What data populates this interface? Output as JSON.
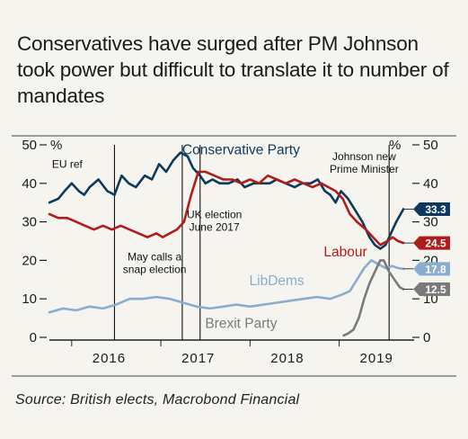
{
  "chart_data": {
    "type": "line",
    "title": "Conservatives have surged after PM Johnson took power but difficult to translate it to number of mandates",
    "source": "Source: British elects, Macrobond Financial",
    "ylim": [
      0,
      50
    ],
    "yticks": [
      0,
      10,
      20,
      30,
      40,
      50
    ],
    "y_unit": "%",
    "xlim": [
      2015.75,
      2019.8
    ],
    "xtick_labels": [
      {
        "label": "2016",
        "x": 2016.0
      },
      {
        "label": "2017",
        "x": 2017.0
      },
      {
        "label": "2018",
        "x": 2018.0
      },
      {
        "label": "2019",
        "x": 2019.0
      }
    ],
    "year_boundaries": [
      2016,
      2017,
      2018,
      2019
    ],
    "grid": false,
    "events": [
      {
        "x": 2016.48,
        "label": "EU ref",
        "label_x": 2015.95,
        "label_y": 44
      },
      {
        "x": 2017.24,
        "label": "May calls a\nsnap election",
        "label_x": 2016.93,
        "label_y": 20
      },
      {
        "x": 2017.44,
        "label": "UK election\nJune 2017",
        "label_x": 2017.6,
        "label_y": 31
      },
      {
        "x": 2019.56,
        "label": "Johnson new\nPrime Minister",
        "label_x": 2019.28,
        "label_y": 46
      }
    ],
    "series": [
      {
        "name": "Conservative Party",
        "color": "#0d3a5c",
        "end_label": "33.3",
        "label_x": 2017.9,
        "label_y": 47.5,
        "x": [
          2015.75,
          2015.85,
          2015.92,
          2016.0,
          2016.08,
          2016.14,
          2016.2,
          2016.3,
          2016.4,
          2016.48,
          2016.56,
          2016.64,
          2016.72,
          2016.82,
          2016.9,
          2016.98,
          2017.06,
          2017.14,
          2017.22,
          2017.3,
          2017.36,
          2017.44,
          2017.5,
          2017.58,
          2017.66,
          2017.76,
          2017.86,
          2017.94,
          2018.04,
          2018.14,
          2018.22,
          2018.3,
          2018.4,
          2018.5,
          2018.58,
          2018.68,
          2018.76,
          2018.84,
          2018.9,
          2018.96,
          2019.02,
          2019.1,
          2019.18,
          2019.26,
          2019.34,
          2019.4,
          2019.46,
          2019.52,
          2019.58,
          2019.64,
          2019.72
        ],
        "values": [
          35,
          36,
          38,
          40,
          38,
          37,
          39,
          41,
          38,
          37,
          42,
          40,
          39,
          42,
          41,
          45,
          43,
          46,
          48,
          47,
          44,
          42,
          40,
          41,
          40,
          40,
          41,
          39,
          40,
          40,
          40,
          41,
          40,
          39,
          40,
          40,
          41,
          38,
          37,
          35,
          38,
          36,
          33,
          30,
          26,
          24,
          23,
          24,
          27,
          30,
          33.3
        ]
      },
      {
        "name": "Labour",
        "color": "#b01c1c",
        "end_label": "24.5",
        "label_x": 2019.07,
        "label_y": 21,
        "x": [
          2015.75,
          2015.85,
          2015.95,
          2016.05,
          2016.15,
          2016.25,
          2016.35,
          2016.45,
          2016.55,
          2016.65,
          2016.75,
          2016.85,
          2016.95,
          2017.02,
          2017.1,
          2017.18,
          2017.26,
          2017.34,
          2017.42,
          2017.5,
          2017.6,
          2017.7,
          2017.8,
          2017.9,
          2018.0,
          2018.1,
          2018.2,
          2018.3,
          2018.4,
          2018.5,
          2018.6,
          2018.7,
          2018.8,
          2018.88,
          2018.96,
          2019.04,
          2019.12,
          2019.2,
          2019.3,
          2019.38,
          2019.46,
          2019.54,
          2019.6,
          2019.66,
          2019.72
        ],
        "values": [
          32,
          31,
          31,
          30,
          29,
          28,
          29,
          28,
          29,
          28,
          27,
          26,
          27,
          26,
          27,
          28,
          30,
          37,
          43,
          43,
          42,
          41,
          41,
          40,
          41,
          40,
          42,
          41,
          40,
          41,
          40,
          39,
          40,
          39,
          38,
          36,
          32,
          30,
          28,
          26,
          24,
          25,
          26,
          25,
          24.5
        ]
      },
      {
        "name": "LibDems",
        "color": "#8aaccd",
        "end_label": "17.8",
        "label_x": 2018.3,
        "label_y": 13.5,
        "x": [
          2015.75,
          2015.9,
          2016.05,
          2016.2,
          2016.35,
          2016.5,
          2016.65,
          2016.8,
          2016.95,
          2017.1,
          2017.25,
          2017.4,
          2017.55,
          2017.7,
          2017.85,
          2018.0,
          2018.15,
          2018.3,
          2018.45,
          2018.6,
          2018.75,
          2018.9,
          2019.02,
          2019.12,
          2019.2,
          2019.28,
          2019.36,
          2019.44,
          2019.52,
          2019.6,
          2019.66,
          2019.72
        ],
        "values": [
          6.5,
          7.5,
          7,
          8,
          7.5,
          8.5,
          10,
          10,
          10.5,
          10,
          9,
          8,
          7.5,
          8,
          8.5,
          8,
          8.5,
          9,
          9.5,
          10,
          10.5,
          10,
          11,
          12,
          15,
          18,
          20,
          19,
          18,
          18.5,
          18,
          17.8
        ]
      },
      {
        "name": "Brexit Party",
        "color": "#7a7a7a",
        "end_label": "12.5",
        "label_x": 2017.9,
        "label_y": 2.5,
        "x": [
          2019.05,
          2019.1,
          2019.16,
          2019.22,
          2019.28,
          2019.34,
          2019.4,
          2019.46,
          2019.5,
          2019.56,
          2019.62,
          2019.68,
          2019.72
        ],
        "values": [
          0.5,
          1,
          2,
          5,
          10,
          14,
          17,
          20,
          20,
          17,
          15,
          13,
          12.5
        ]
      }
    ]
  }
}
